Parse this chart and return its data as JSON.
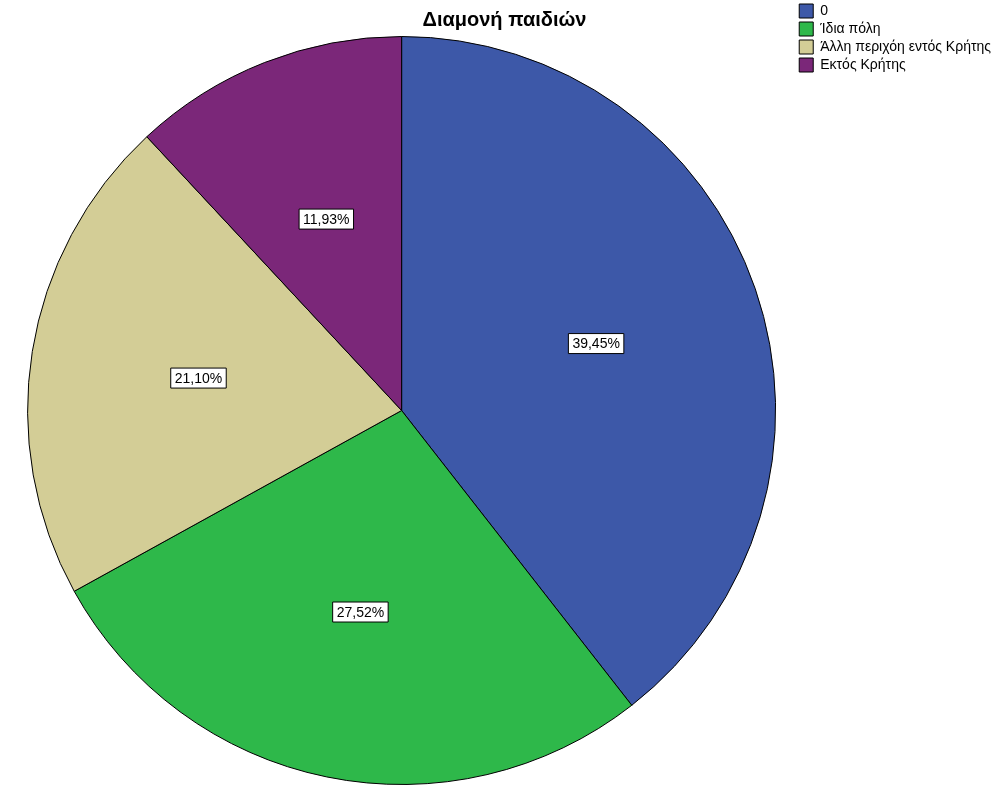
{
  "chart_data": {
    "type": "pie",
    "title": "Διαμονή παιδιών",
    "categories": [
      "0",
      "Ίδια πόλη",
      "Άλλη περιχόη εντός Κρήτης",
      "Εκτός Κρήτης"
    ],
    "values": [
      39.45,
      27.52,
      21.1,
      11.93
    ],
    "value_labels": [
      "39,45%",
      "27,52%",
      "21,10%",
      "11,93%"
    ],
    "colors": [
      "#3d58a8",
      "#2eb84a",
      "#d3cd96",
      "#7b2779"
    ],
    "legend": "top right"
  }
}
